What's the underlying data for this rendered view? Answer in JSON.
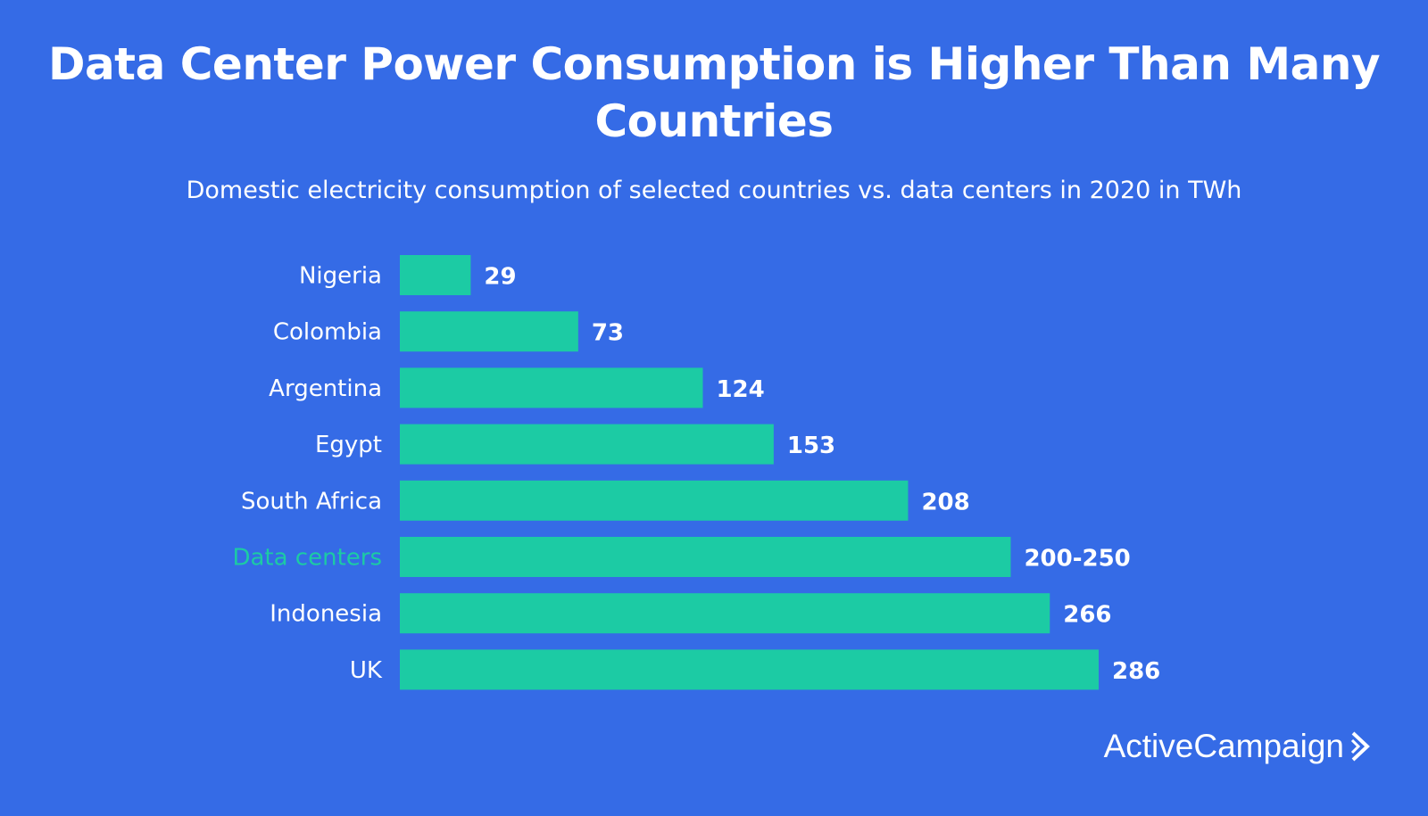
{
  "chart_data": {
    "type": "bar",
    "orientation": "horizontal",
    "title": "Data Center Power Consumption is Higher Than Many Countries",
    "subtitle": "Domestic electricity consumption of selected countries vs. data centers in 2020 in TWh",
    "categories": [
      "Nigeria",
      "Colombia",
      "Argentina",
      "Egypt",
      "South Africa",
      "Data centers",
      "Indonesia",
      "UK"
    ],
    "values": [
      29,
      73,
      124,
      153,
      208,
      250,
      266,
      286
    ],
    "value_labels": [
      "29",
      "73",
      "124",
      "153",
      "208",
      "200-250",
      "266",
      "286"
    ],
    "highlight_category": "Data centers",
    "xlim": [
      0,
      286
    ],
    "grid": false,
    "colors": {
      "background": "#356BE6",
      "bar": "#1CCBA4",
      "text": "#FFFFFF",
      "highlight_label": "#1CCBA4"
    }
  },
  "brand": {
    "logo_text": "ActiveCampaign",
    "logo_icon": "chevron-right-icon"
  }
}
